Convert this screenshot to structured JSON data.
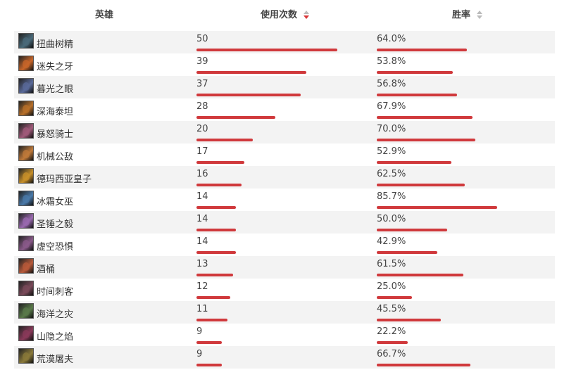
{
  "header": {
    "hero_label": "英雄",
    "uses_label": "使用次数",
    "winrate_label": "胜率"
  },
  "colors": {
    "bar": "#d0393c",
    "sort_active": "#d9383a",
    "sort_inactive": "#bbbbbb",
    "row_alt": "#f3f3f3"
  },
  "rows": [
    {
      "name": "扭曲树精",
      "uses": "50",
      "winrate": "64.0%",
      "uses_value": 50,
      "winrate_value": 64.0,
      "avatar_icon": "maokai-icon",
      "tint": "#4a6a7a"
    },
    {
      "name": "迷失之牙",
      "uses": "39",
      "winrate": "53.8%",
      "uses_value": 39,
      "winrate_value": 53.8,
      "avatar_icon": "gnar-icon",
      "tint": "#c8662a"
    },
    {
      "name": "暮光之眼",
      "uses": "37",
      "winrate": "56.8%",
      "uses_value": 37,
      "winrate_value": 56.8,
      "avatar_icon": "shen-icon",
      "tint": "#5a6a9a"
    },
    {
      "name": "深海泰坦",
      "uses": "28",
      "winrate": "67.9%",
      "uses_value": 28,
      "winrate_value": 67.9,
      "avatar_icon": "nautilus-icon",
      "tint": "#b8702a"
    },
    {
      "name": "暴怒骑士",
      "uses": "20",
      "winrate": "70.0%",
      "uses_value": 20,
      "winrate_value": 70.0,
      "avatar_icon": "kled-icon",
      "tint": "#a05a7a"
    },
    {
      "name": "机械公敌",
      "uses": "17",
      "winrate": "52.9%",
      "uses_value": 17,
      "winrate_value": 52.9,
      "avatar_icon": "rumble-icon",
      "tint": "#c07a3a"
    },
    {
      "name": "德玛西亚皇子",
      "uses": "16",
      "winrate": "62.5%",
      "uses_value": 16,
      "winrate_value": 62.5,
      "avatar_icon": "jarvan-icon",
      "tint": "#c8902a"
    },
    {
      "name": "冰霜女巫",
      "uses": "14",
      "winrate": "85.7%",
      "uses_value": 14,
      "winrate_value": 85.7,
      "avatar_icon": "lissandra-icon",
      "tint": "#4a7aaa"
    },
    {
      "name": "圣锤之毅",
      "uses": "14",
      "winrate": "50.0%",
      "uses_value": 14,
      "winrate_value": 50.0,
      "avatar_icon": "poppy-icon",
      "tint": "#9a6ab0"
    },
    {
      "name": "虚空恐惧",
      "uses": "14",
      "winrate": "42.9%",
      "uses_value": 14,
      "winrate_value": 42.9,
      "avatar_icon": "chogath-icon",
      "tint": "#8a5a8a"
    },
    {
      "name": "酒桶",
      "uses": "13",
      "winrate": "61.5%",
      "uses_value": 13,
      "winrate_value": 61.5,
      "avatar_icon": "gragas-icon",
      "tint": "#b85a3a"
    },
    {
      "name": "时间刺客",
      "uses": "12",
      "winrate": "25.0%",
      "uses_value": 12,
      "winrate_value": 25.0,
      "avatar_icon": "ekko-icon",
      "tint": "#7a4a5a"
    },
    {
      "name": "海洋之灾",
      "uses": "11",
      "winrate": "45.5%",
      "uses_value": 11,
      "winrate_value": 45.5,
      "avatar_icon": "gangplank-icon",
      "tint": "#5a7a4a"
    },
    {
      "name": "山隐之焰",
      "uses": "9",
      "winrate": "22.2%",
      "uses_value": 9,
      "winrate_value": 22.2,
      "avatar_icon": "ornn-icon",
      "tint": "#8a3a5a"
    },
    {
      "name": "荒漠屠夫",
      "uses": "9",
      "winrate": "66.7%",
      "uses_value": 9,
      "winrate_value": 66.7,
      "avatar_icon": "renekton-icon",
      "tint": "#8a7a3a"
    }
  ]
}
